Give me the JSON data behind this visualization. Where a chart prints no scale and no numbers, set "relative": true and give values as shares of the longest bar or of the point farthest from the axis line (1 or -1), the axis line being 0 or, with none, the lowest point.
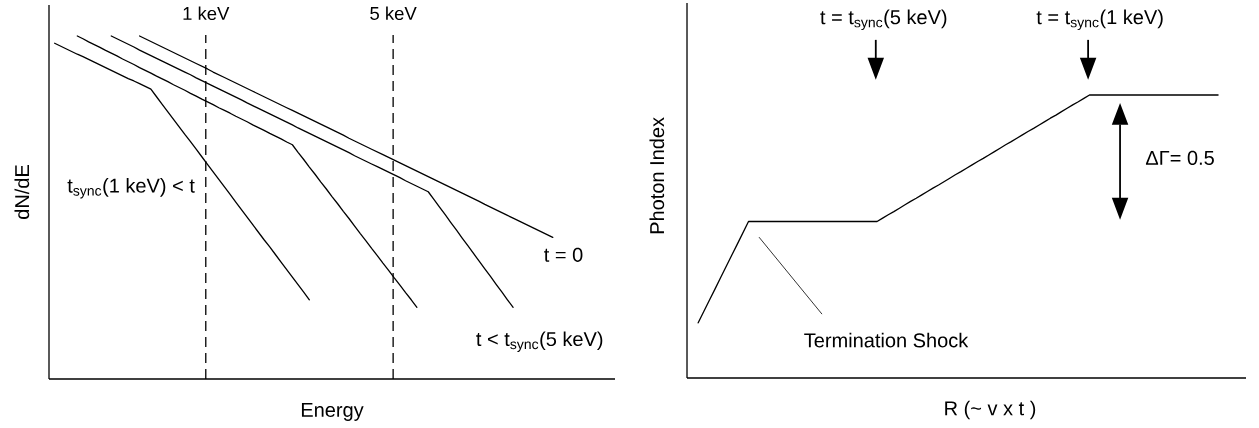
{
  "chart_data": [
    {
      "type": "line",
      "xlabel": "Energy",
      "ylabel": "dN/dE",
      "relative": true,
      "line_style": "solid",
      "categories": [
        null,
        null,
        null,
        null,
        null,
        null,
        null,
        null,
        null,
        null,
        null,
        null,
        null,
        null,
        null,
        null,
        null,
        null,
        null,
        null,
        null,
        null,
        null,
        null,
        null,
        null,
        null,
        null,
        null,
        null,
        null,
        null,
        null,
        null,
        null,
        null,
        null,
        null,
        null,
        null,
        null,
        null,
        null,
        null,
        null,
        null,
        null,
        null,
        null,
        null,
        null,
        null,
        null,
        null,
        null,
        null,
        null,
        null,
        null,
        null,
        null,
        null,
        null,
        null,
        null,
        null,
        null,
        null,
        null,
        null,
        null,
        null,
        null,
        null,
        null,
        null,
        null,
        null,
        null,
        null,
        null,
        null,
        null,
        null,
        null,
        null,
        null,
        null,
        null,
        null,
        null,
        null,
        null,
        null,
        null,
        null,
        null,
        null,
        null,
        null,
        null
      ],
      "series": [
        {
          "color": "#000000",
          "values": [
            null,
            0.979,
            0.971,
            0.963,
            0.955,
            0.947,
            0.94,
            0.932,
            0.924,
            0.916,
            0.908,
            0.9,
            0.892,
            0.884,
            0.876,
            0.869,
            0.861,
            0.853,
            0.845,
            0.823,
            0.801,
            0.779,
            0.757,
            0.735,
            0.713,
            0.692,
            0.67,
            0.648,
            0.626,
            0.604,
            0.582,
            0.56,
            0.538,
            0.516,
            0.494,
            0.472,
            0.45,
            0.428,
            0.406,
            0.385,
            0.363,
            0.341,
            0.319,
            0.297,
            0.275,
            0.253,
            0.231,
            null,
            null,
            null,
            null,
            null,
            null,
            null,
            null,
            null,
            null,
            null,
            null,
            null,
            null,
            null,
            null,
            null,
            null,
            null,
            null,
            null,
            null,
            null,
            null,
            null,
            null,
            null,
            null,
            null,
            null,
            null,
            null,
            null,
            null,
            null,
            null,
            null,
            null,
            null,
            null,
            null,
            null,
            null,
            null,
            null,
            null,
            null,
            null,
            null,
            null,
            null,
            null,
            null,
            null
          ]
        },
        {
          "color": "#000000",
          "values": [
            null,
            null,
            null,
            null,
            null,
            1,
            0.992,
            0.983,
            0.975,
            0.967,
            0.958,
            0.95,
            0.942,
            0.933,
            0.925,
            0.917,
            0.908,
            0.9,
            0.892,
            0.883,
            0.875,
            0.867,
            0.858,
            0.85,
            0.842,
            0.833,
            0.825,
            0.816,
            0.808,
            0.8,
            0.791,
            0.783,
            0.775,
            0.766,
            0.758,
            0.75,
            0.741,
            0.733,
            0.725,
            0.716,
            0.708,
            0.7,
            0.691,
            0.683,
            0.661,
            0.64,
            0.618,
            0.597,
            0.575,
            0.554,
            0.532,
            0.511,
            0.489,
            0.468,
            0.446,
            0.424,
            0.403,
            0.381,
            0.36,
            0.338,
            0.317,
            0.295,
            0.274,
            0.252,
            0.231,
            0.209,
            null,
            null,
            null,
            null,
            null,
            null,
            null,
            null,
            null,
            null,
            null,
            null,
            null,
            null,
            null,
            null,
            null,
            null,
            null,
            null,
            null,
            null,
            null,
            null,
            null,
            null,
            null,
            null,
            null,
            null,
            null,
            null,
            null,
            null,
            null
          ]
        },
        {
          "color": "#000000",
          "values": [
            null,
            null,
            null,
            null,
            null,
            null,
            null,
            null,
            null,
            null,
            null,
            1,
            0.992,
            0.984,
            0.976,
            0.968,
            0.959,
            0.951,
            0.943,
            0.935,
            0.927,
            0.919,
            0.911,
            0.903,
            0.895,
            0.887,
            0.878,
            0.87,
            0.862,
            0.854,
            0.846,
            0.838,
            0.83,
            0.822,
            0.814,
            0.805,
            0.797,
            0.789,
            0.781,
            0.773,
            0.765,
            0.757,
            0.749,
            0.741,
            0.732,
            0.724,
            0.716,
            0.708,
            0.7,
            0.692,
            0.684,
            0.676,
            0.668,
            0.66,
            0.651,
            0.643,
            0.635,
            0.627,
            0.619,
            0.611,
            0.603,
            0.595,
            0.587,
            0.578,
            0.57,
            0.562,
            0.554,
            0.546,
            0.524,
            0.501,
            0.479,
            0.456,
            0.434,
            0.411,
            0.389,
            0.366,
            0.344,
            0.321,
            0.299,
            0.276,
            0.254,
            0.231,
            0.209,
            null,
            null,
            null,
            null,
            null,
            null,
            null,
            null,
            null,
            null,
            null,
            null,
            null,
            null,
            null,
            null,
            null,
            null
          ]
        },
        {
          "color": "#000000",
          "values": [
            null,
            null,
            null,
            null,
            null,
            null,
            null,
            null,
            null,
            null,
            null,
            null,
            null,
            null,
            null,
            null,
            1,
            0.992,
            0.984,
            0.976,
            0.968,
            0.96,
            0.952,
            0.944,
            0.936,
            0.928,
            0.92,
            0.912,
            0.904,
            0.895,
            0.887,
            0.879,
            0.871,
            0.863,
            0.855,
            0.847,
            0.839,
            0.831,
            0.823,
            0.815,
            0.807,
            0.799,
            0.791,
            0.783,
            0.775,
            0.767,
            0.759,
            0.751,
            0.743,
            0.735,
            0.727,
            0.719,
            0.711,
            0.702,
            0.694,
            0.686,
            0.678,
            0.67,
            0.662,
            0.654,
            0.646,
            0.638,
            0.63,
            0.622,
            0.614,
            0.606,
            0.598,
            0.59,
            0.582,
            0.574,
            0.566,
            0.558,
            0.55,
            0.542,
            0.534,
            0.526,
            0.518,
            0.509,
            0.501,
            0.493,
            0.485,
            0.477,
            0.469,
            0.461,
            0.453,
            0.445,
            0.437,
            0.429,
            0.421,
            0.413,
            null,
            null,
            null,
            null,
            null,
            null,
            null,
            null,
            null,
            null,
            null
          ]
        }
      ],
      "annotations": [
        "1 keV",
        "5 keV",
        "t$_{sync}$(1 keV) < t",
        "t = 0",
        "t < t$_{sync}$(5 keV)"
      ]
    },
    {
      "type": "line",
      "xlabel": "R (~ v x t )",
      "ylabel": "Photon Index",
      "relative": true,
      "line_style": "solid",
      "categories": [
        null,
        null,
        null,
        null,
        null,
        null,
        null,
        null,
        null,
        null,
        null,
        null,
        null,
        null,
        null,
        null,
        null,
        null,
        null,
        null,
        null,
        null,
        null,
        null,
        null,
        null,
        null,
        null,
        null,
        null,
        null,
        null,
        null,
        null,
        null,
        null,
        null,
        null,
        null,
        null,
        null,
        null,
        null,
        null,
        null,
        null,
        null,
        null,
        null,
        null,
        null,
        null,
        null,
        null,
        null,
        null,
        null,
        null,
        null,
        null,
        null,
        null,
        null,
        null,
        null,
        null,
        null,
        null,
        null,
        null,
        null,
        null,
        null,
        null,
        null,
        null,
        null,
        null,
        null,
        null,
        null,
        null,
        null,
        null,
        null,
        null,
        null,
        null,
        null,
        null,
        null,
        null,
        null,
        null,
        null,
        null,
        null,
        null,
        null,
        null,
        null
      ],
      "series": [
        {
          "color": "#000000",
          "values": [
            null,
            null,
            0.195,
            0.235,
            0.275,
            0.314,
            0.354,
            0.394,
            0.434,
            0.473,
            0.513,
            0.553,
            0.553,
            0.553,
            0.553,
            0.553,
            0.553,
            0.553,
            0.553,
            0.553,
            0.553,
            0.553,
            0.553,
            0.553,
            0.553,
            0.553,
            0.553,
            0.553,
            0.553,
            0.553,
            0.553,
            0.553,
            0.553,
            0.553,
            0.553,
            0.565,
            0.577,
            0.588,
            0.6,
            0.612,
            0.624,
            0.635,
            0.647,
            0.659,
            0.671,
            0.682,
            0.694,
            0.706,
            0.718,
            0.729,
            0.741,
            0.753,
            0.765,
            0.776,
            0.788,
            0.8,
            0.812,
            0.824,
            0.835,
            0.847,
            0.859,
            0.871,
            0.882,
            0.894,
            0.906,
            0.918,
            0.929,
            0.941,
            0.953,
            0.965,
            0.976,
            0.988,
            1,
            1,
            1,
            1,
            1,
            1,
            1,
            1,
            1,
            1,
            1,
            1,
            1,
            1,
            1,
            1,
            1,
            1,
            1,
            1,
            1,
            1,
            1,
            1,
            null,
            null,
            null,
            null,
            null
          ]
        }
      ],
      "annotations": [
        "t = t$_{sync}$(5 keV)",
        "t = t$_{sync}$(1 keV)",
        "ΔΓ= 0.5",
        "Termination Shock"
      ]
    }
  ]
}
